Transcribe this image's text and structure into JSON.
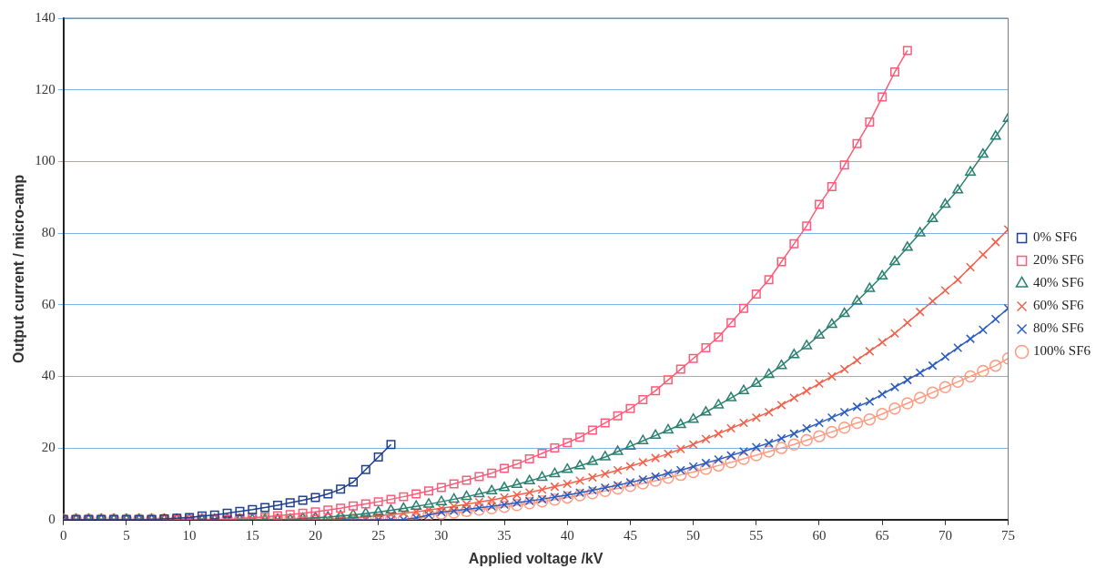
{
  "chart_data": {
    "type": "line",
    "xlabel": "Applied voltage /kV",
    "ylabel": "Output current / micro-amp",
    "x": [
      0,
      1,
      2,
      3,
      4,
      5,
      6,
      7,
      8,
      9,
      10,
      11,
      12,
      13,
      14,
      15,
      16,
      17,
      18,
      19,
      20,
      21,
      22,
      23,
      24,
      25,
      26,
      27,
      28,
      29,
      30,
      31,
      32,
      33,
      34,
      35,
      36,
      37,
      38,
      39,
      40,
      41,
      42,
      43,
      44,
      45,
      46,
      47,
      48,
      49,
      50,
      51,
      52,
      53,
      54,
      55,
      56,
      57,
      58,
      59,
      60,
      61,
      62,
      63,
      64,
      65,
      66,
      67,
      68,
      69,
      70,
      71,
      72,
      73,
      74,
      75
    ],
    "xlim": [
      0,
      75
    ],
    "xticks": [
      0,
      5,
      10,
      15,
      20,
      25,
      30,
      35,
      40,
      45,
      50,
      55,
      60,
      65,
      70,
      75
    ],
    "ylim": [
      0,
      140
    ],
    "yticks": [
      0,
      20,
      40,
      60,
      80,
      100,
      120,
      140
    ],
    "grid": "y",
    "legend": "right",
    "line_style": "solid",
    "series": [
      {
        "name": "0% SF6",
        "color": "#1f3f8f",
        "marker": "square",
        "values": [
          0,
          0,
          0,
          0,
          0,
          0,
          0,
          0,
          0.2,
          0.4,
          0.6,
          1,
          1.3,
          1.8,
          2.3,
          2.8,
          3.4,
          4,
          4.7,
          5.4,
          6.2,
          7.2,
          8.5,
          10.5,
          14,
          17.5,
          21,
          null,
          null,
          null,
          null,
          null,
          null,
          null,
          null,
          null,
          null,
          null,
          null,
          null,
          null,
          null,
          null,
          null,
          null,
          null,
          null,
          null,
          null,
          null,
          null,
          null,
          null,
          null,
          null,
          null,
          null,
          null,
          null,
          null,
          null,
          null,
          null,
          null,
          null,
          null,
          null,
          null,
          null,
          null,
          null,
          null,
          null,
          null,
          null,
          null
        ]
      },
      {
        "name": "20% SF6",
        "color": "#ff5a78",
        "marker": "square",
        "values": [
          0,
          0,
          0,
          0,
          0,
          0,
          0,
          0,
          0,
          0,
          0,
          0,
          0,
          0,
          0.3,
          0.5,
          0.8,
          1.1,
          1.4,
          1.8,
          2.2,
          2.7,
          3.2,
          3.8,
          4.4,
          5,
          5.7,
          6.4,
          7.2,
          8,
          9,
          10,
          11,
          12,
          13,
          14.3,
          15.5,
          17,
          18.5,
          20,
          21.5,
          23,
          25,
          27,
          29,
          31,
          33.5,
          36,
          39,
          42,
          45,
          48,
          51,
          55,
          59,
          63,
          67,
          72,
          77,
          82,
          88,
          93,
          99,
          105,
          111,
          118,
          125,
          131,
          null,
          null,
          null,
          null,
          null,
          null,
          null,
          null
        ]
      },
      {
        "name": "40% SF6",
        "color": "#2a8070",
        "marker": "triangle",
        "values": [
          0,
          0,
          0,
          0,
          0,
          0,
          0,
          0,
          0,
          0,
          0,
          0,
          0,
          0,
          0,
          0,
          0,
          0,
          0,
          0.3,
          0.5,
          0.7,
          1,
          1.3,
          1.7,
          2.1,
          2.6,
          3.1,
          3.7,
          4.3,
          5,
          5.7,
          6.4,
          7.2,
          8,
          8.9,
          9.8,
          10.8,
          11.8,
          12.8,
          14,
          15,
          16.2,
          17.5,
          19,
          20.5,
          22,
          23.5,
          25,
          26.5,
          28,
          30,
          32,
          34,
          36,
          38,
          40.5,
          43,
          46,
          48.5,
          51.5,
          54.5,
          57.5,
          61,
          64.5,
          68,
          72,
          76,
          80,
          84,
          88,
          92,
          97,
          102,
          107,
          112
        ]
      },
      {
        "name": "60% SF6",
        "color": "#f0604a",
        "marker": "cross",
        "values": [
          0,
          0,
          0,
          0,
          0,
          0,
          0,
          0,
          0,
          0,
          0,
          0,
          0,
          0,
          0,
          0,
          0,
          0,
          0,
          0,
          0,
          0,
          0.3,
          0.5,
          0.8,
          1.1,
          1.4,
          1.8,
          2.2,
          2.7,
          3.2,
          3.7,
          4.3,
          4.9,
          5.5,
          6.2,
          6.9,
          7.6,
          8.4,
          9.2,
          10,
          10.9,
          11.8,
          12.8,
          13.8,
          14.9,
          16,
          17.2,
          18.4,
          19.7,
          21,
          22.5,
          24,
          25.5,
          27,
          28.5,
          30,
          32,
          34,
          36,
          38,
          40,
          42,
          44.5,
          47,
          49.5,
          52,
          55,
          58,
          61,
          64,
          67,
          70.5,
          74,
          77.5,
          81
        ]
      },
      {
        "name": "80% SF6",
        "color": "#2a5cc0",
        "marker": "cross",
        "values": [
          null,
          null,
          null,
          null,
          null,
          null,
          0,
          0,
          0,
          0,
          0,
          0,
          0,
          0,
          0,
          0,
          0,
          0,
          0,
          0,
          0,
          0,
          0,
          0,
          0,
          0,
          0,
          0,
          0.5,
          1.3,
          2.1,
          2.5,
          2.9,
          3.3,
          3.7,
          4.2,
          4.7,
          5.2,
          5.7,
          6.3,
          6.9,
          7.5,
          8.2,
          8.9,
          9.6,
          10.4,
          11.2,
          12,
          12.9,
          13.8,
          14.8,
          15.8,
          16.8,
          17.9,
          19,
          20.2,
          21.4,
          22.7,
          24,
          25.5,
          27,
          28.5,
          30,
          31.5,
          33,
          35,
          37,
          39,
          41,
          43,
          45.5,
          48,
          50.5,
          53,
          56,
          59
        ]
      },
      {
        "name": "100% SF6",
        "color": "#ff9a80",
        "marker": "circle",
        "values": [
          0,
          0,
          0,
          0,
          0,
          0,
          0,
          0,
          0,
          0,
          0,
          0,
          0,
          0,
          0,
          0,
          0,
          0,
          0,
          0,
          0,
          0,
          0,
          0,
          0,
          0,
          0,
          0,
          0,
          1.4,
          1.7,
          2,
          2.4,
          2.8,
          3.2,
          3.6,
          4.1,
          4.6,
          5.1,
          5.6,
          6.2,
          6.8,
          7.4,
          8,
          8.7,
          9.4,
          10.1,
          10.9,
          11.7,
          12.5,
          13.3,
          14.2,
          15.1,
          16,
          17,
          18,
          19,
          20,
          21,
          22.2,
          23.3,
          24.5,
          25.7,
          27,
          28,
          29.5,
          31,
          32.5,
          34,
          35.5,
          37,
          38.5,
          40,
          41.5,
          43,
          45
        ]
      }
    ]
  }
}
